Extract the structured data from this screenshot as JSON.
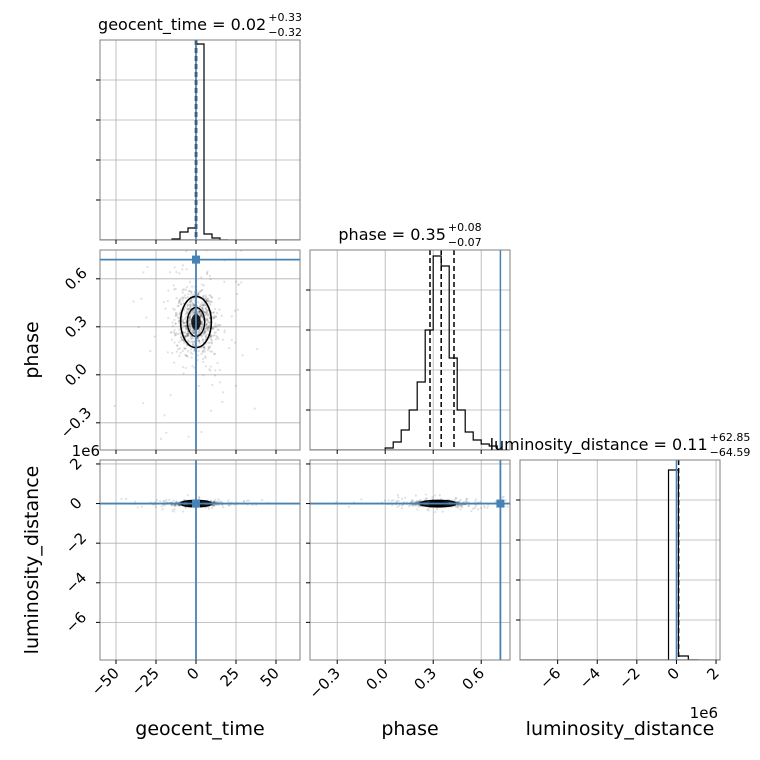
{
  "chart_data": {
    "type": "corner",
    "truth_color": "#4682b4",
    "params": [
      {
        "name": "geocent_time",
        "xlabel": "geocent_time",
        "ylabel": "",
        "title_main": "geocent_time = 0.02",
        "title_plus": "+0.33",
        "title_minus": "−0.32",
        "median": 0.02,
        "q16": -0.3,
        "q84": 0.35,
        "truth": 0.0,
        "range": [
          -60,
          65
        ],
        "ticks": [
          -50,
          -25,
          0,
          25,
          50
        ],
        "tick_labels": [
          "−50",
          "−25",
          "0",
          "25",
          "50"
        ],
        "offset": "",
        "hist": {
          "bin_edges": [
            -15,
            -10,
            -5,
            0,
            5,
            10,
            15,
            20
          ],
          "counts": [
            0.005,
            0.04,
            0.06,
            0.98,
            0.03,
            0.01,
            0.0
          ]
        }
      },
      {
        "name": "phase",
        "xlabel": "phase",
        "ylabel": "phase",
        "title_main": "phase = 0.35",
        "title_plus": "+0.08",
        "title_minus": "−0.07",
        "median": 0.35,
        "q16": 0.28,
        "q84": 0.43,
        "truth": 0.72,
        "range": [
          -0.47,
          0.78
        ],
        "ticks": [
          -0.3,
          0.0,
          0.3,
          0.6
        ],
        "tick_labels": [
          "−0.3",
          "0.0",
          "0.3",
          "0.6"
        ],
        "offset": "",
        "hist": {
          "bin_edges": [
            0.0,
            0.05,
            0.1,
            0.15,
            0.2,
            0.25,
            0.3,
            0.35,
            0.4,
            0.45,
            0.5,
            0.55,
            0.6,
            0.65,
            0.7
          ],
          "counts": [
            0.01,
            0.04,
            0.1,
            0.2,
            0.34,
            0.6,
            0.97,
            0.92,
            0.46,
            0.2,
            0.09,
            0.05,
            0.03,
            0.02
          ]
        }
      },
      {
        "name": "luminosity_distance",
        "xlabel": "luminosity_distance",
        "ylabel": "luminosity_distance",
        "title_main": "luminosity_distance = 0.11",
        "title_plus": "+62.85",
        "title_minus": "−64.59",
        "median": 0.11,
        "q16": -64.48,
        "q84": 62.96,
        "truth": 0.0,
        "range": [
          -7.9,
          2.2
        ],
        "ticks": [
          -6,
          -4,
          -2,
          0,
          2
        ],
        "tick_labels": [
          "−6",
          "−4",
          "−2",
          "0",
          "2"
        ],
        "offset": "1e6",
        "hist": {
          "bin_edges": [
            -0.4,
            0.1,
            0.6,
            1.1
          ],
          "counts": [
            0.95,
            0.02,
            0.0
          ]
        }
      }
    ],
    "pair_panels": [
      {
        "x": "geocent_time",
        "y": "phase",
        "center": [
          0.0,
          0.33
        ],
        "spread": [
          6,
          0.1
        ]
      },
      {
        "x": "geocent_time",
        "y": "luminosity_distance",
        "center": [
          0.0,
          -0.0
        ],
        "spread": [
          6,
          0.05
        ]
      },
      {
        "x": "phase",
        "y": "luminosity_distance",
        "center": [
          0.33,
          -0.0
        ],
        "spread": [
          0.07,
          0.06
        ]
      }
    ],
    "grid": true
  }
}
